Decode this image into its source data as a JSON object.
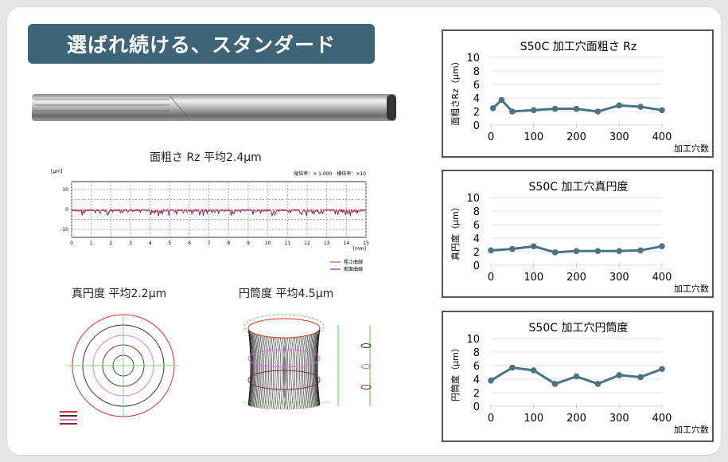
{
  "banner": {
    "title": "選ばれ続ける、スタンダード"
  },
  "roughness": {
    "title": "面粗さ Rz 平均2.4μm",
    "unit": "[μm]",
    "magnification": "縦倍率：× 1,000　横倍率：×10",
    "x_unit": "[mm]",
    "y_ticks": [
      "10",
      "0",
      "-10"
    ],
    "x_ticks": [
      "0",
      "1",
      "2",
      "3",
      "4",
      "5",
      "6",
      "7",
      "8",
      "9",
      "10",
      "11",
      "12",
      "13",
      "14",
      "15"
    ],
    "legend": [
      {
        "label": "粗さ曲線",
        "color": "#e02020"
      },
      {
        "label": "断面曲線",
        "color": "#2020c0"
      }
    ]
  },
  "roundness": {
    "title": "真円度 平均2.2μm"
  },
  "cylindricity": {
    "title": "円筒度 平均4.5μm"
  },
  "colors": {
    "banner": "#3e6577",
    "series": "#4a7384",
    "grid": "#e0e0e0"
  },
  "chart_data": [
    {
      "type": "line",
      "title": "S50C 加工穴面粗さ Rz",
      "xlabel": "加工穴数",
      "ylabel": "面粗さRz（μm）",
      "xlim": [
        0,
        400
      ],
      "ylim": [
        0,
        10
      ],
      "x_ticks": [
        0,
        100,
        200,
        300,
        400
      ],
      "y_ticks": [
        0,
        2,
        4,
        6,
        8,
        10
      ],
      "grid": true,
      "x": [
        5,
        25,
        50,
        100,
        150,
        200,
        250,
        300,
        350,
        400
      ],
      "y": [
        2.5,
        3.7,
        2.0,
        2.2,
        2.4,
        2.4,
        2.0,
        2.9,
        2.7,
        2.2
      ]
    },
    {
      "type": "line",
      "title": "S50C 加工穴真円度",
      "xlabel": "加工穴数",
      "ylabel": "真円度（μm）",
      "xlim": [
        0,
        400
      ],
      "ylim": [
        0,
        10
      ],
      "x_ticks": [
        0,
        100,
        200,
        300,
        400
      ],
      "y_ticks": [
        0,
        2,
        4,
        6,
        8,
        10
      ],
      "grid": true,
      "x": [
        0,
        50,
        100,
        150,
        200,
        250,
        300,
        350,
        400
      ],
      "y": [
        2.2,
        2.4,
        2.8,
        1.9,
        2.1,
        2.1,
        2.1,
        2.2,
        2.8
      ]
    },
    {
      "type": "line",
      "title": "S50C 加工穴円筒度",
      "xlabel": "加工穴数",
      "ylabel": "円筒度（μm）",
      "xlim": [
        0,
        400
      ],
      "ylim": [
        0,
        10
      ],
      "x_ticks": [
        0,
        100,
        200,
        300,
        400
      ],
      "y_ticks": [
        0,
        2,
        4,
        6,
        8,
        10
      ],
      "grid": true,
      "x": [
        0,
        50,
        100,
        150,
        200,
        250,
        300,
        350,
        400
      ],
      "y": [
        3.8,
        5.7,
        5.3,
        3.3,
        4.4,
        3.3,
        4.6,
        4.3,
        5.5
      ]
    }
  ]
}
